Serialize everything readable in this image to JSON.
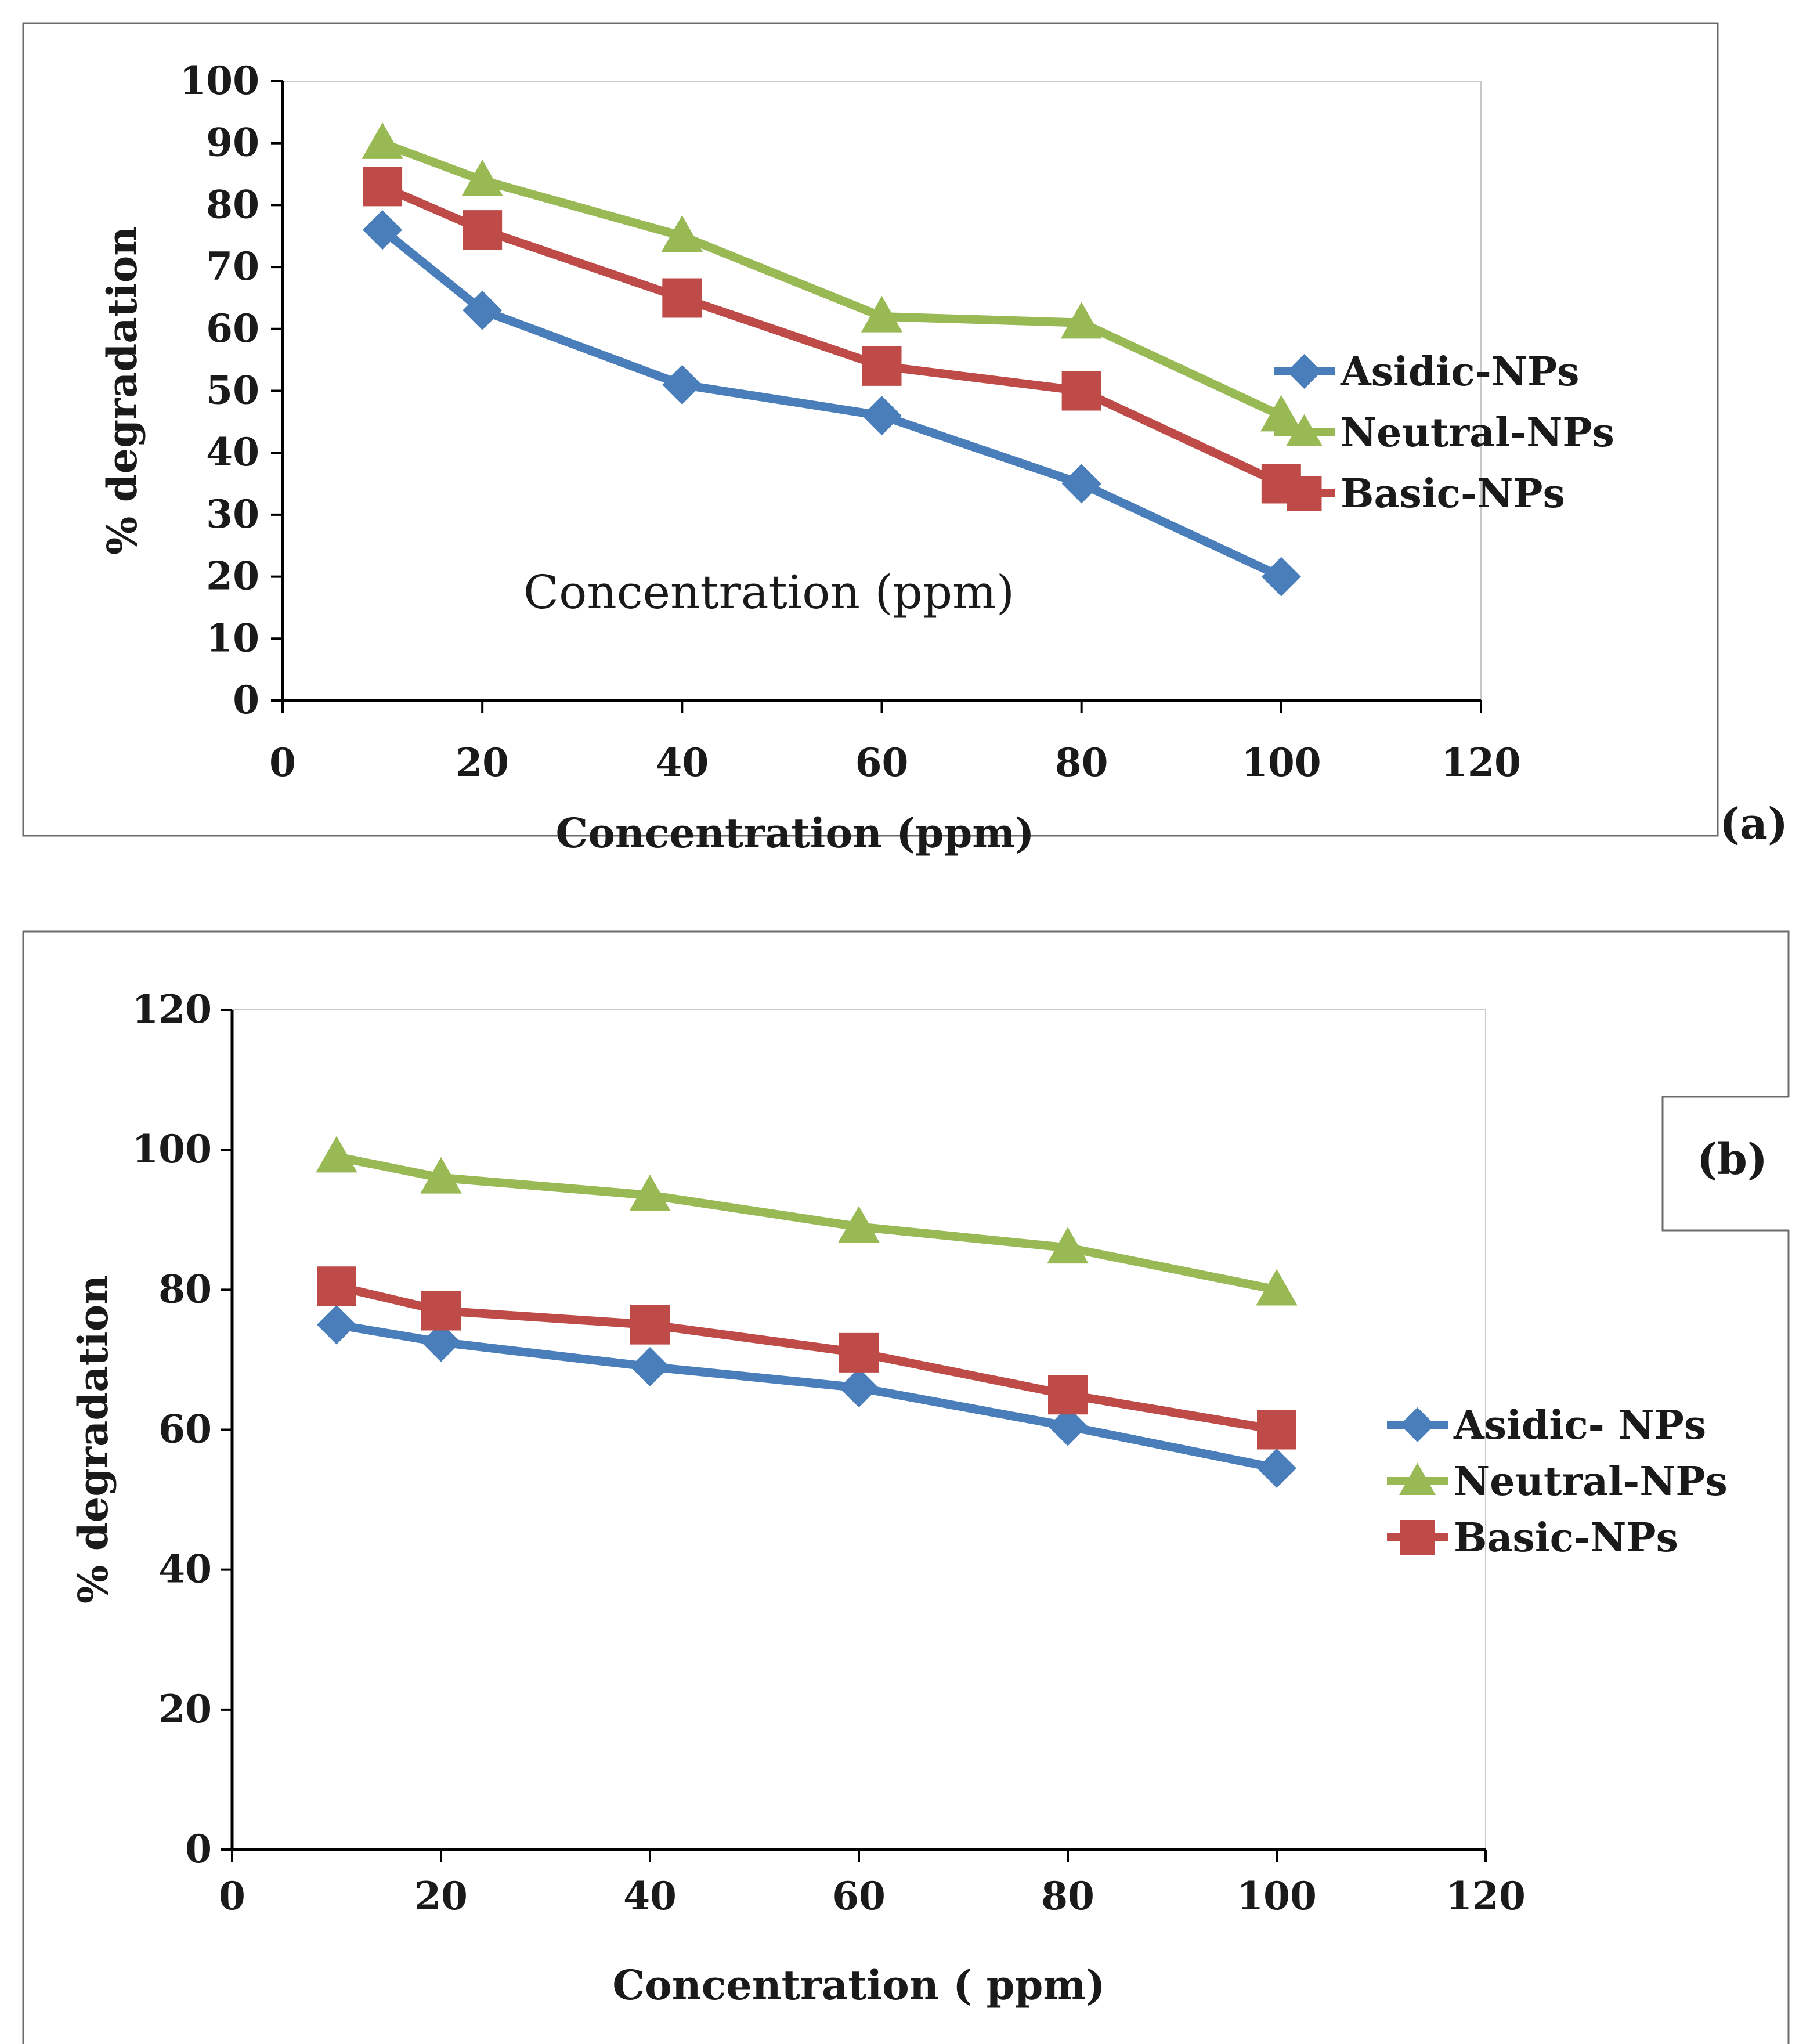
{
  "chart_data": [
    {
      "type": "line",
      "panel_label": "(a)",
      "x": [
        10,
        20,
        40,
        60,
        80,
        100
      ],
      "series": [
        {
          "name": "Asidic-NPs",
          "values": [
            76,
            63,
            51,
            46,
            35,
            20
          ],
          "color": "#4a7ebb",
          "marker": "diamond"
        },
        {
          "name": "Neutral-NPs",
          "values": [
            90,
            84,
            75,
            62,
            61,
            46
          ],
          "color": "#98b954",
          "marker": "triangle"
        },
        {
          "name": "Basic-NPs",
          "values": [
            83,
            76,
            65,
            54,
            50,
            35
          ],
          "color": "#be4b48",
          "marker": "square"
        }
      ],
      "xlabel": "Concentration (ppm)",
      "ylabel": "% degradation",
      "annotation": "Concentration (ppm)",
      "xlim": [
        0,
        120
      ],
      "ylim": [
        0,
        100
      ],
      "xticks": [
        0,
        20,
        40,
        60,
        80,
        100,
        120
      ],
      "yticks": [
        0,
        10,
        20,
        30,
        40,
        50,
        60,
        70,
        80,
        90,
        100
      ],
      "legend": "right"
    },
    {
      "type": "line",
      "panel_label": "(b)",
      "x": [
        10,
        20,
        40,
        60,
        80,
        100
      ],
      "series": [
        {
          "name": "Asidic- NPs",
          "values": [
            75,
            72.5,
            69,
            66,
            60.5,
            54.5
          ],
          "color": "#4a7ebb",
          "marker": "diamond"
        },
        {
          "name": "Neutral-NPs",
          "values": [
            99,
            96,
            93.5,
            89,
            86,
            80
          ],
          "color": "#98b954",
          "marker": "triangle"
        },
        {
          "name": "Basic-NPs",
          "values": [
            80.5,
            77,
            75,
            71,
            65,
            60
          ],
          "color": "#be4b48",
          "marker": "square"
        }
      ],
      "xlabel": "Concentration ( ppm)",
      "ylabel": "% degradation",
      "xlim": [
        0,
        120
      ],
      "ylim": [
        0,
        120
      ],
      "xticks": [
        0,
        20,
        40,
        60,
        80,
        100,
        120
      ],
      "yticks": [
        0,
        20,
        40,
        60,
        80,
        100,
        120
      ],
      "legend": "right"
    }
  ]
}
